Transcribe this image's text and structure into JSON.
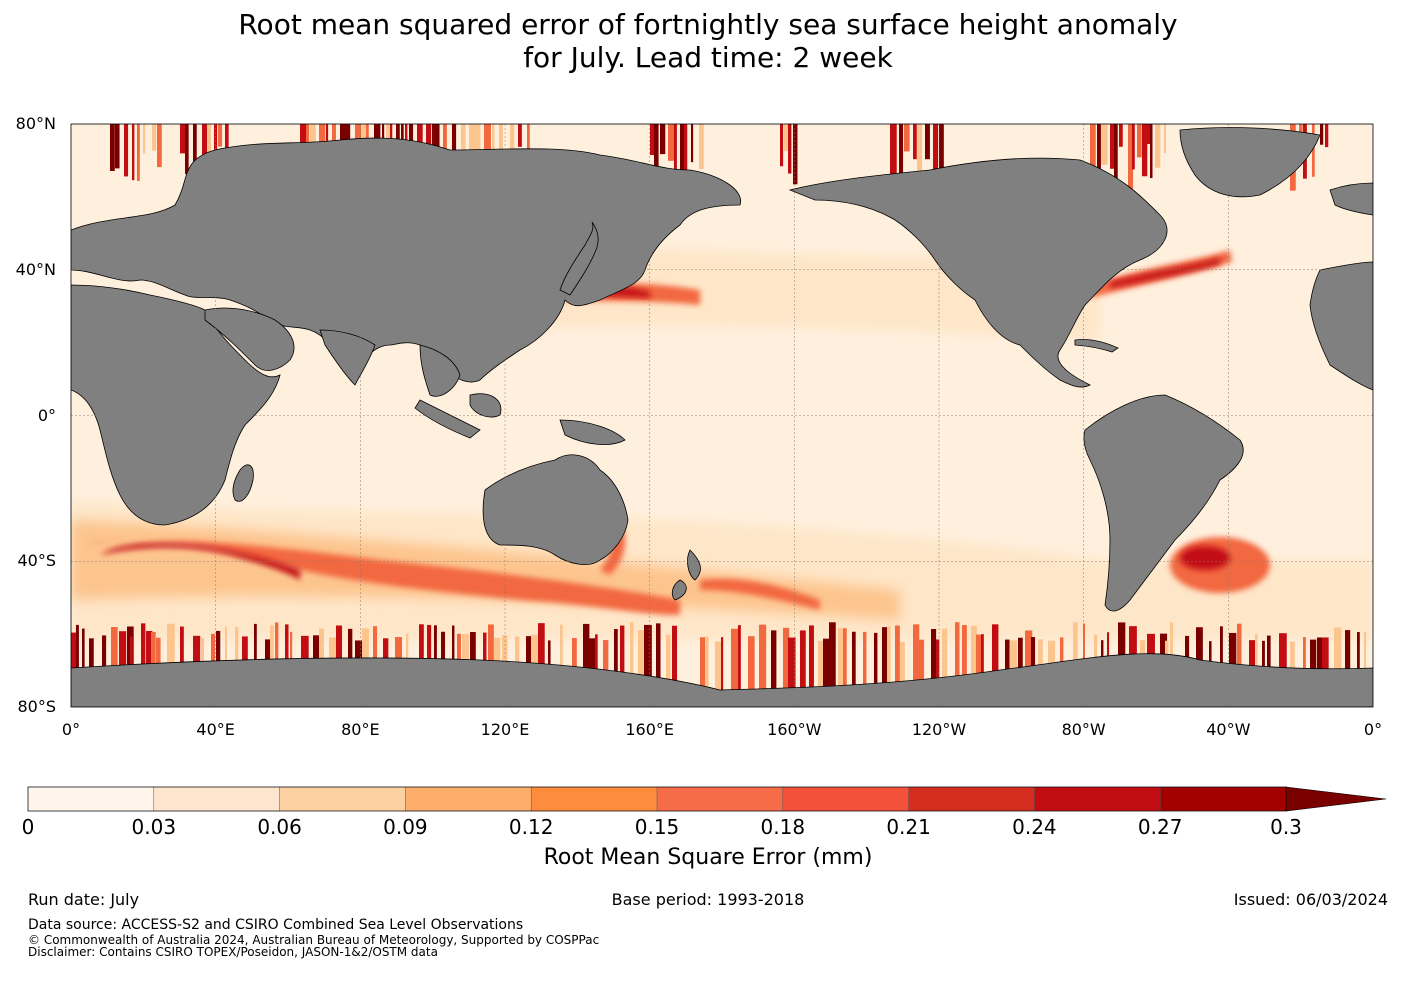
{
  "title": {
    "line1": "Root mean squared error of fortnightly sea surface height anomaly",
    "line2": "for July. Lead time: 2 week"
  },
  "map": {
    "lat_labels": [
      "80°N",
      "40°N",
      "0°",
      "40°S",
      "80°S"
    ],
    "lon_labels": [
      "0°",
      "40°E",
      "80°E",
      "120°E",
      "160°E",
      "160°W",
      "120°W",
      "80°W",
      "40°W",
      "0°"
    ],
    "colors": {
      "land": "#808080",
      "ocean_base": "#fff0de",
      "low": "#fee6c8",
      "mid": "#fdc58e",
      "high": "#f2683f",
      "very_high": "#c20d12",
      "max": "#7a0000",
      "grid": "#8a7a6a"
    }
  },
  "colorbar": {
    "ticks": [
      "0",
      "0.03",
      "0.06",
      "0.09",
      "0.12",
      "0.15",
      "0.18",
      "0.21",
      "0.24",
      "0.27",
      "0.3"
    ],
    "colors": [
      "#fff5eb",
      "#fee6ce",
      "#fdd0a2",
      "#fdae6b",
      "#fd8d3c",
      "#f66b48",
      "#f4513a",
      "#d42d1f",
      "#c20d12",
      "#a50000",
      "#7a0000"
    ],
    "label": "Root Mean Square Error (mm)"
  },
  "footer": {
    "run_date": "Run date: July",
    "base_period": "Base period: 1993-2018",
    "issued": "Issued: 06/03/2024",
    "data_source": "Data source: ACCESS-S2 and CSIRO Combined Sea Level Observations",
    "copyright": "© Commonwealth of Australia 2024, Australian Bureau of Meteorology, Supported by COSPPac",
    "disclaimer": "Disclaimer: Contains CSIRO TOPEX/Poseidon, JASON-1&2/OSTM data"
  }
}
